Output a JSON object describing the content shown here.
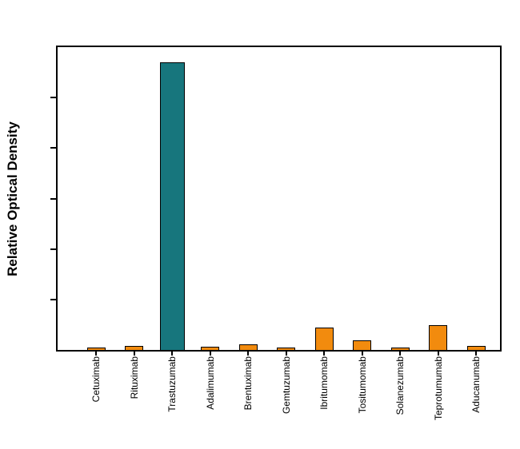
{
  "chart_data": {
    "type": "bar",
    "title": "",
    "xlabel": "",
    "ylabel": "Relative Optical Density",
    "categories": [
      "Cetuximab",
      "Rituximab",
      "Trastuzumab",
      "Adalimumab",
      "Brentuximab",
      "Gemtuzumab",
      "Ibritumomab",
      "Tositumomab",
      "Solanezumab",
      "Teprotumumab",
      "Aducanumab"
    ],
    "values": [
      0.008,
      0.013,
      0.95,
      0.01,
      0.018,
      0.008,
      0.075,
      0.033,
      0.007,
      0.083,
      0.014
    ],
    "ylim": [
      0,
      1.0
    ],
    "y_tick_count": 6,
    "y_tick_labels_visible": false,
    "grid": false,
    "legend": false,
    "highlight_index": 2,
    "colors": {
      "highlight": "#17767d",
      "default": "#f28b0e",
      "edge": "#000000"
    }
  }
}
